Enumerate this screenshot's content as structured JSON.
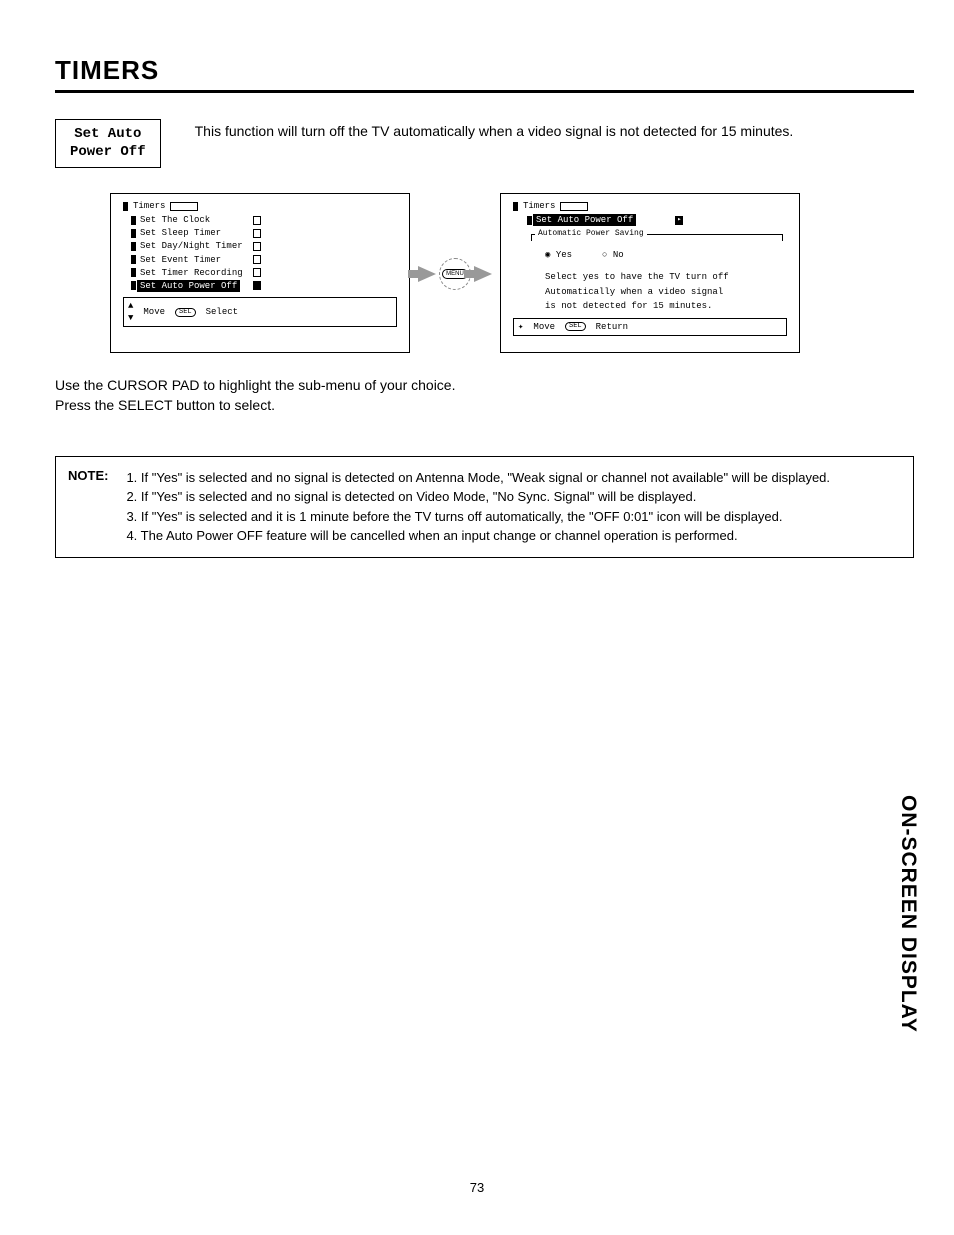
{
  "title": "TIMERS",
  "section_box": "Set Auto\nPower Off",
  "intro": "This function will turn off the TV automatically when a video signal is not detected for 15 minutes.",
  "screen1": {
    "header": "Timers",
    "items": [
      "Set The Clock",
      "Set Sleep Timer",
      "Set Day/Night Timer",
      "Set Event Timer",
      "Set Timer Recording",
      "Set Auto Power Off"
    ],
    "nav_move": "Move",
    "nav_sel": "SEL",
    "nav_select": "Select"
  },
  "menu_button": "MENU",
  "screen2": {
    "header": "Timers",
    "sub": "Set Auto Power Off",
    "legend": "Automatic Power Saving",
    "yes": "Yes",
    "no": "No",
    "help1": "Select yes to have the TV turn off",
    "help2": "Automatically when a video signal",
    "help3": "is not detected for 15 minutes.",
    "nav_move": "Move",
    "nav_sel": "SEL",
    "nav_return": "Return"
  },
  "instructions_l1": "Use the CURSOR PAD to highlight the sub-menu of your choice.",
  "instructions_l2": "Press the SELECT button to select.",
  "note_label": "NOTE:",
  "notes": [
    "1. If \"Yes\" is selected and no signal is detected on Antenna Mode, \"Weak signal or channel not available\" will be displayed.",
    "2. If \"Yes\" is selected and no signal is detected on Video Mode, \"No Sync. Signal\" will be displayed.",
    "3. If \"Yes\" is selected and it is 1 minute before the TV turns off automatically, the \"OFF 0:01\" icon will be displayed.",
    "4. The Auto Power OFF feature will be cancelled when an input change or channel operation is   performed."
  ],
  "side_tab": "ON-SCREEN DISPLAY",
  "page_number": "73"
}
